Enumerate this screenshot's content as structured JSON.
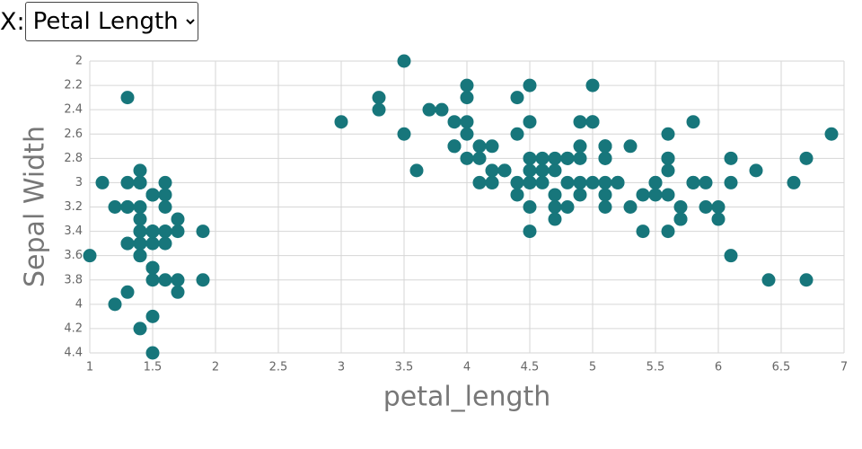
{
  "control": {
    "label": "X:",
    "options": [
      "Petal Length"
    ]
  },
  "chart_data": {
    "type": "scatter",
    "x_label": "petal_length",
    "y_label": "Sepal Width",
    "color": "#17767b",
    "xlim": [
      1,
      7
    ],
    "ylim": [
      2,
      4.4
    ],
    "y_reversed": true,
    "grid": true,
    "xticks": [
      1,
      1.5,
      2,
      2.5,
      3,
      3.5,
      4,
      4.5,
      5,
      5.5,
      6,
      6.5,
      7
    ],
    "yticks": [
      2,
      2.2,
      2.4,
      2.6,
      2.8,
      3,
      3.2,
      3.4,
      3.6,
      3.8,
      4,
      4.2,
      4.4
    ],
    "x": [
      1.4,
      1.4,
      1.3,
      1.5,
      1.4,
      1.7,
      1.4,
      1.5,
      1.4,
      1.5,
      1.5,
      1.6,
      1.4,
      1.1,
      1.2,
      1.5,
      1.3,
      1.4,
      1.7,
      1.5,
      1.7,
      1.5,
      1.0,
      1.7,
      1.9,
      1.6,
      1.6,
      1.5,
      1.4,
      1.6,
      1.6,
      1.5,
      1.5,
      1.4,
      1.5,
      1.2,
      1.3,
      1.4,
      1.3,
      1.5,
      1.3,
      1.3,
      1.3,
      1.6,
      1.9,
      1.4,
      1.6,
      1.4,
      1.5,
      1.4,
      4.7,
      4.5,
      4.9,
      4.0,
      4.6,
      4.5,
      4.7,
      3.3,
      4.6,
      3.9,
      3.5,
      4.2,
      4.0,
      4.7,
      3.6,
      4.4,
      4.5,
      4.1,
      4.5,
      3.9,
      4.8,
      4.0,
      4.9,
      4.7,
      4.3,
      4.4,
      4.8,
      5.0,
      4.5,
      3.5,
      3.8,
      3.7,
      3.9,
      5.1,
      4.5,
      4.5,
      4.7,
      4.4,
      4.1,
      4.0,
      4.4,
      4.6,
      4.0,
      3.3,
      4.2,
      4.2,
      4.2,
      4.3,
      3.0,
      4.1,
      6.0,
      5.1,
      5.9,
      5.6,
      5.8,
      6.6,
      4.5,
      6.3,
      5.8,
      6.1,
      5.1,
      5.3,
      5.5,
      5.0,
      5.1,
      5.3,
      5.5,
      6.7,
      6.9,
      5.0,
      5.7,
      4.9,
      6.7,
      4.9,
      5.7,
      6.0,
      4.8,
      4.9,
      5.6,
      5.8,
      6.1,
      6.4,
      5.6,
      5.1,
      5.6,
      6.1,
      5.6,
      5.5,
      4.8,
      5.4,
      5.6,
      5.1,
      5.1,
      5.9,
      5.7,
      5.2,
      5.0,
      5.2,
      5.4,
      5.1
    ],
    "values": [
      3.5,
      3.0,
      3.2,
      3.1,
      3.6,
      3.9,
      3.4,
      3.4,
      2.9,
      3.1,
      3.7,
      3.4,
      3.0,
      3.0,
      4.0,
      4.4,
      3.9,
      3.5,
      3.8,
      3.8,
      3.4,
      3.7,
      3.6,
      3.3,
      3.4,
      3.0,
      3.4,
      3.5,
      3.4,
      3.2,
      3.1,
      3.4,
      4.1,
      4.2,
      3.1,
      3.2,
      3.5,
      3.6,
      3.0,
      3.4,
      3.5,
      2.3,
      3.2,
      3.5,
      3.8,
      3.0,
      3.8,
      3.2,
      3.7,
      3.3,
      3.2,
      3.2,
      3.1,
      2.3,
      2.8,
      2.8,
      3.3,
      2.4,
      2.9,
      2.7,
      2.0,
      3.0,
      2.2,
      2.9,
      2.9,
      3.1,
      3.0,
      2.7,
      2.2,
      2.5,
      3.2,
      2.8,
      2.5,
      2.8,
      2.9,
      3.0,
      2.8,
      3.0,
      2.9,
      2.6,
      2.4,
      2.4,
      2.7,
      2.7,
      3.0,
      3.4,
      3.1,
      2.3,
      3.0,
      2.5,
      2.6,
      3.0,
      2.6,
      2.3,
      2.7,
      3.0,
      2.9,
      2.9,
      2.5,
      2.8,
      3.3,
      2.7,
      3.0,
      2.9,
      3.0,
      3.0,
      2.5,
      2.9,
      2.5,
      3.6,
      3.2,
      2.7,
      3.0,
      2.5,
      2.8,
      3.2,
      3.0,
      3.8,
      2.6,
      2.2,
      3.2,
      2.8,
      2.8,
      2.7,
      3.3,
      3.2,
      2.8,
      3.0,
      2.8,
      3.0,
      2.8,
      3.8,
      2.8,
      2.8,
      2.6,
      3.0,
      3.4,
      3.1,
      3.0,
      3.1,
      3.1,
      3.1,
      2.7,
      3.2,
      3.3,
      3.0,
      2.5,
      3.0,
      3.4,
      3.0
    ]
  }
}
